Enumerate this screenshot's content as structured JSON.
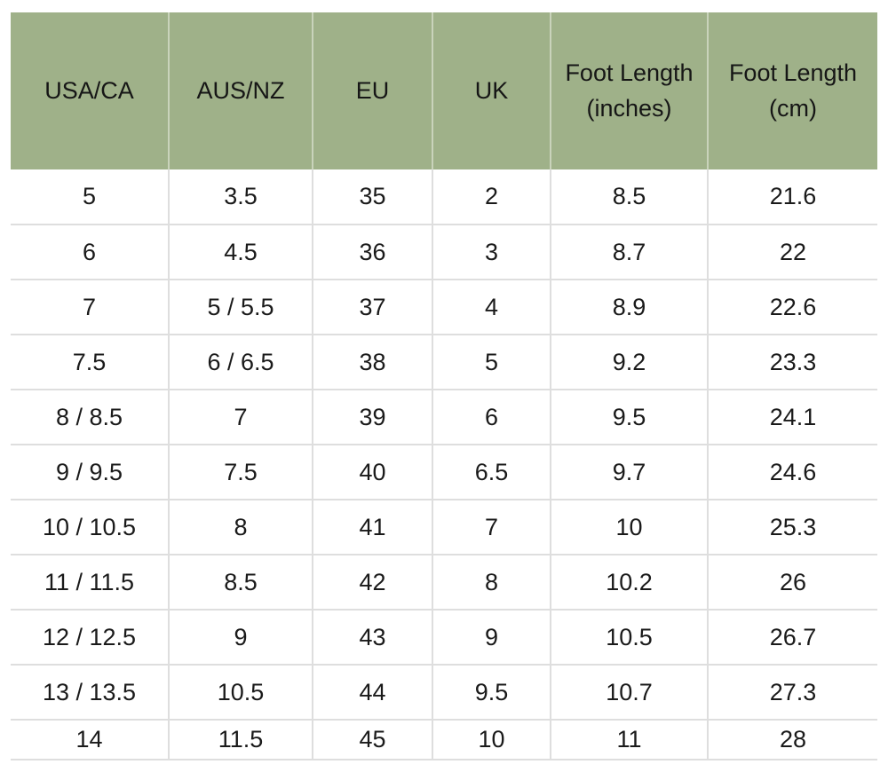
{
  "colors": {
    "header_bg": "#9fb189",
    "header_divider": "#c9d3bb",
    "body_divider": "#dedede",
    "text": "#1a1a1a",
    "page_bg": "#ffffff"
  },
  "table": {
    "name": "shoe-size-conversion-chart",
    "columns": [
      {
        "label": "USA/CA"
      },
      {
        "label": "AUS/NZ"
      },
      {
        "label": "EU"
      },
      {
        "label": "UK"
      },
      {
        "label": "Foot Length (inches)"
      },
      {
        "label": "Foot Length (cm)"
      }
    ],
    "rows": [
      [
        "5",
        "3.5",
        "35",
        "2",
        "8.5",
        "21.6"
      ],
      [
        "6",
        "4.5",
        "36",
        "3",
        "8.7",
        "22"
      ],
      [
        "7",
        "5 / 5.5",
        "37",
        "4",
        "8.9",
        "22.6"
      ],
      [
        "7.5",
        "6 / 6.5",
        "38",
        "5",
        "9.2",
        "23.3"
      ],
      [
        "8 / 8.5",
        "7",
        "39",
        "6",
        "9.5",
        "24.1"
      ],
      [
        "9 / 9.5",
        "7.5",
        "40",
        "6.5",
        "9.7",
        "24.6"
      ],
      [
        "10 / 10.5",
        "8",
        "41",
        "7",
        "10",
        "25.3"
      ],
      [
        "11 / 11.5",
        "8.5",
        "42",
        "8",
        "10.2",
        "26"
      ],
      [
        "12 / 12.5",
        "9",
        "43",
        "9",
        "10.5",
        "26.7"
      ],
      [
        "13 / 13.5",
        "10.5",
        "44",
        "9.5",
        "10.7",
        "27.3"
      ],
      [
        "14",
        "11.5",
        "45",
        "10",
        "11",
        "28"
      ]
    ]
  }
}
